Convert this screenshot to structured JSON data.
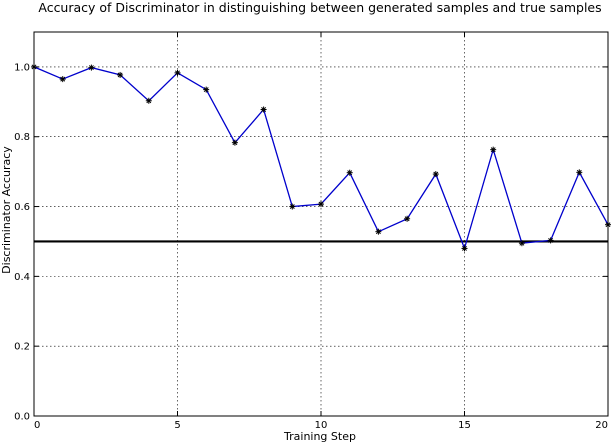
{
  "chart_data": {
    "type": "line",
    "title": "Accuracy of Discriminator in distinguishing between generated samples and true samples",
    "xlabel": "Training Step",
    "ylabel": "Discriminator Accuracy",
    "xlim": [
      0,
      20
    ],
    "ylim": [
      0.0,
      1.1
    ],
    "x_ticks": [
      0,
      5,
      10,
      15,
      20
    ],
    "y_ticks": [
      0.0,
      0.2,
      0.4,
      0.6,
      0.8,
      1.0
    ],
    "x_tick_labels": [
      "0",
      "5",
      "10",
      "15",
      "20"
    ],
    "y_tick_labels": [
      "0.0",
      "0.2",
      "0.4",
      "0.6",
      "0.8",
      "1.0"
    ],
    "grid": true,
    "series": [
      {
        "x": [
          0,
          1,
          2,
          3,
          4,
          5,
          6,
          7,
          8,
          9,
          10,
          11,
          12,
          13,
          14,
          15,
          16,
          17,
          18,
          19,
          20
        ],
        "values": [
          1.0,
          0.965,
          0.998,
          0.977,
          0.903,
          0.983,
          0.935,
          0.783,
          0.878,
          0.6,
          0.607,
          0.697,
          0.528,
          0.565,
          0.693,
          0.48,
          0.763,
          0.495,
          0.503,
          0.698,
          0.548
        ],
        "color": "#0000cc",
        "marker": "star"
      }
    ],
    "reference_line": {
      "y": 0.5,
      "color": "#000000"
    }
  }
}
